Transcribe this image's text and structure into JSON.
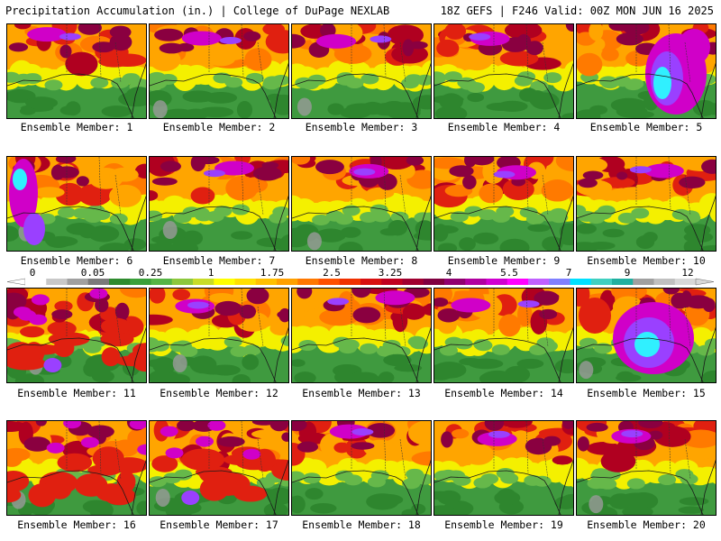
{
  "header": {
    "left": "Precipitation Accumulation (in.) | College of DuPage NEXLAB",
    "right": "18Z GEFS | F246 Valid: 00Z MON JUN 16 2025"
  },
  "members": [
    {
      "label": "Ensemble Member: 1",
      "mode": "north"
    },
    {
      "label": "Ensemble Member: 2",
      "mode": "north"
    },
    {
      "label": "Ensemble Member: 3",
      "mode": "north"
    },
    {
      "label": "Ensemble Member: 4",
      "mode": "north"
    },
    {
      "label": "Ensemble Member: 5",
      "mode": "east"
    },
    {
      "label": "Ensemble Member: 6",
      "mode": "west"
    },
    {
      "label": "Ensemble Member: 7",
      "mode": "north"
    },
    {
      "label": "Ensemble Member: 8",
      "mode": "north"
    },
    {
      "label": "Ensemble Member: 9",
      "mode": "north"
    },
    {
      "label": "Ensemble Member: 10",
      "mode": "north"
    },
    {
      "label": "Ensemble Member: 11",
      "mode": "wet"
    },
    {
      "label": "Ensemble Member: 12",
      "mode": "north"
    },
    {
      "label": "Ensemble Member: 13",
      "mode": "north"
    },
    {
      "label": "Ensemble Member: 14",
      "mode": "north"
    },
    {
      "label": "Ensemble Member: 15",
      "mode": "center"
    },
    {
      "label": "Ensemble Member: 16",
      "mode": "wet"
    },
    {
      "label": "Ensemble Member: 17",
      "mode": "wet"
    },
    {
      "label": "Ensemble Member: 18",
      "mode": "north"
    },
    {
      "label": "Ensemble Member: 19",
      "mode": "north"
    },
    {
      "label": "Ensemble Member: 20",
      "mode": "north"
    }
  ],
  "colorbar": {
    "ticks": [
      "0",
      "0.05",
      "0.25",
      "1",
      "1.75",
      "2.5",
      "3.25",
      "4",
      "5.5",
      "7",
      "9",
      "12"
    ],
    "colors": [
      "#ffffff",
      "#c8c8c8",
      "#a0a0a0",
      "#7a7a7a",
      "#2e8b2e",
      "#3aa03a",
      "#55b545",
      "#8cc83c",
      "#c8dc28",
      "#ffff00",
      "#ffe000",
      "#ffc000",
      "#ffa000",
      "#ff7800",
      "#ff5000",
      "#f03000",
      "#d81010",
      "#c00020",
      "#a00030",
      "#800040",
      "#900070",
      "#b000a0",
      "#d000d0",
      "#ff00ff",
      "#c060ff",
      "#8080ff",
      "#00e0ff",
      "#40d0c0",
      "#20b0a0",
      "#a0a0a0",
      "#c0c0c0",
      "#d8d8d8"
    ]
  }
}
